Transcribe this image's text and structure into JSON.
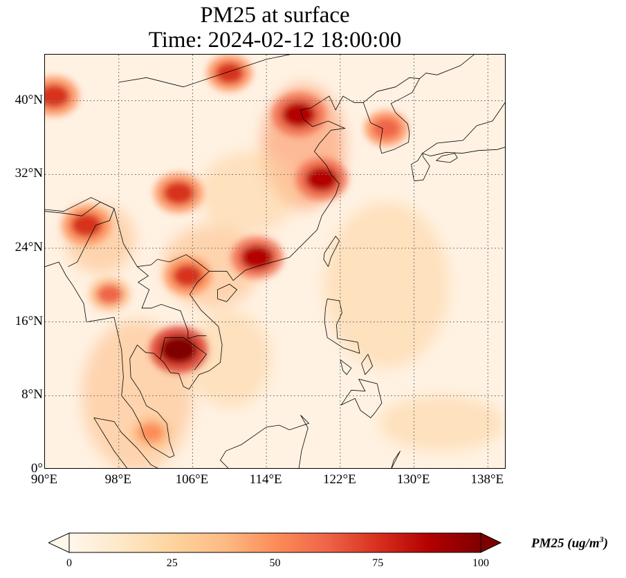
{
  "title": {
    "line1": "PM25 at surface",
    "line2": "Time: 2024-02-12 18:00:00"
  },
  "map": {
    "variable": "PM25",
    "projection": "PlateCarree",
    "lon_range": [
      90,
      140
    ],
    "lat_range": [
      0,
      45
    ],
    "gridlines": "dotted gray",
    "lat_ticks": [
      {
        "value": 0,
        "label": "0°"
      },
      {
        "value": 8,
        "label": "8°N"
      },
      {
        "value": 16,
        "label": "16°N"
      },
      {
        "value": 24,
        "label": "24°N"
      },
      {
        "value": 32,
        "label": "32°N"
      },
      {
        "value": 40,
        "label": "40°N"
      }
    ],
    "lon_ticks": [
      {
        "value": 90,
        "label": "90°E"
      },
      {
        "value": 98,
        "label": "98°E"
      },
      {
        "value": 106,
        "label": "106°E"
      },
      {
        "value": 114,
        "label": "114°E"
      },
      {
        "value": 122,
        "label": "122°E"
      },
      {
        "value": 130,
        "label": "130°E"
      },
      {
        "value": 138,
        "label": "138°E"
      }
    ],
    "colormap": "OrRd",
    "background_color": "#fff2e3",
    "hotspots": [
      {
        "region": "Cambodia / southern Laos",
        "lon": 104.5,
        "lat": 13.0,
        "level": 100
      },
      {
        "region": "North China Plain",
        "lon": 117.5,
        "lat": 38.5,
        "level": 90
      },
      {
        "region": "Yangtze River Delta",
        "lon": 120.0,
        "lat": 31.5,
        "level": 85
      },
      {
        "region": "Sichuan Basin",
        "lon": 104.5,
        "lat": 30.0,
        "level": 80
      },
      {
        "region": "Pearl River Delta",
        "lon": 113.0,
        "lat": 23.0,
        "level": 85
      },
      {
        "region": "Northern Vietnam",
        "lon": 105.5,
        "lat": 21.0,
        "level": 75
      },
      {
        "region": "Northeast India",
        "lon": 94.5,
        "lat": 26.5,
        "level": 80
      },
      {
        "region": "Inner Mongolia / Gobi",
        "lon": 110.0,
        "lat": 43.0,
        "level": 70
      },
      {
        "region": "Western China (40°N)",
        "lon": 91.0,
        "lat": 40.5,
        "level": 80
      },
      {
        "region": "Myanmar",
        "lon": 97.0,
        "lat": 19.0,
        "level": 60
      },
      {
        "region": "Korea",
        "lon": 127.0,
        "lat": 37.0,
        "level": 65
      },
      {
        "region": "Malay Peninsula",
        "lon": 101.5,
        "lat": 4.0,
        "level": 55
      }
    ]
  },
  "colorbar": {
    "label": "PM25 (ug/m³)",
    "label_text": "PM25 (ug/m",
    "label_sup": "3",
    "label_close": ")",
    "min": 0,
    "max": 100,
    "extend": "both",
    "ticks": [
      {
        "value": 0,
        "label": "0"
      },
      {
        "value": 25,
        "label": "25"
      },
      {
        "value": 50,
        "label": "50"
      },
      {
        "value": 75,
        "label": "75"
      },
      {
        "value": 100,
        "label": "100"
      }
    ],
    "colors": [
      "#fff7ec",
      "#fee8c8",
      "#fdd49e",
      "#fdbb84",
      "#fc8d59",
      "#ef6548",
      "#d7301f",
      "#b30000",
      "#7f0000"
    ]
  }
}
